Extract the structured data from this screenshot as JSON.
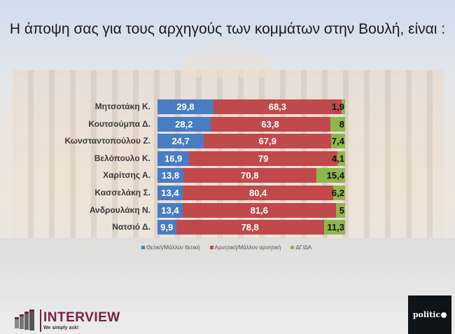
{
  "title": "Η άποψη σας για τους αρχηγούς των κομμάτων στην Βουλή,  είναι :",
  "legend": [
    {
      "label": "Θετική/Μάλλον θετική",
      "color": "#4a7cc3"
    },
    {
      "label": "Αρνητική/Μάλλον αρνητική",
      "color": "#c0494b"
    },
    {
      "label": "ΔΓ/ΔΑ",
      "color": "#8fb64e"
    }
  ],
  "rows": [
    {
      "label": "Μητσοτάκη Κ.",
      "pos": "29,8",
      "neg": "68,3",
      "dk": "1,9"
    },
    {
      "label": "Κουτσούμπα Δ.",
      "pos": "28,2",
      "neg": "63,8",
      "dk": "8"
    },
    {
      "label": "Κωνσταντοπούλου Ζ.",
      "pos": "24,7",
      "neg": "67,9",
      "dk": "7,4"
    },
    {
      "label": "Βελόπουλο Κ.",
      "pos": "16,9",
      "neg": "79",
      "dk": "4,1"
    },
    {
      "label": "Χαρίτσης Α.",
      "pos": "13,8",
      "neg": "70,8",
      "dk": "15,4"
    },
    {
      "label": "Κασσελάκη Σ.",
      "pos": "13,4",
      "neg": "80,4",
      "dk": "6,2"
    },
    {
      "label": "Ανδρουλάκη Ν.",
      "pos": "13,4",
      "neg": "81,6",
      "dk": "5"
    },
    {
      "label": "Νατσιό Δ.",
      "pos": "9,9",
      "neg": "78,8",
      "dk": "11,3"
    }
  ],
  "logos": {
    "interview_name": "INTERVIEW",
    "interview_tagline": "We simply ask!",
    "politic": "politic"
  },
  "chart_data": {
    "type": "bar",
    "orientation": "horizontal",
    "stacked": true,
    "title": "Η άποψη σας για τους αρχηγούς των κομμάτων στην Βουλή,  είναι :",
    "categories": [
      "Μητσοτάκη Κ.",
      "Κουτσούμπα Δ.",
      "Κωνσταντοπούλου Ζ.",
      "Βελόπουλο Κ.",
      "Χαρίτσης Α.",
      "Κασσελάκη Σ.",
      "Ανδρουλάκη Ν.",
      "Νατσιό Δ."
    ],
    "series": [
      {
        "name": "Θετική/Μάλλον θετική",
        "color": "#4a7cc3",
        "values": [
          29.8,
          28.2,
          24.7,
          16.9,
          13.8,
          13.4,
          13.4,
          9.9
        ]
      },
      {
        "name": "Αρνητική/Μάλλον αρνητική",
        "color": "#c0494b",
        "values": [
          68.3,
          63.8,
          67.9,
          79,
          70.8,
          80.4,
          81.6,
          78.8
        ]
      },
      {
        "name": "ΔΓ/ΔΑ",
        "color": "#8fb64e",
        "values": [
          1.9,
          8,
          7.4,
          4.1,
          15.4,
          6.2,
          5,
          11.3
        ]
      }
    ],
    "xlabel": "",
    "ylabel": "",
    "xlim": [
      0,
      100
    ],
    "grid": false,
    "legend_position": "bottom",
    "data_labels": true
  }
}
